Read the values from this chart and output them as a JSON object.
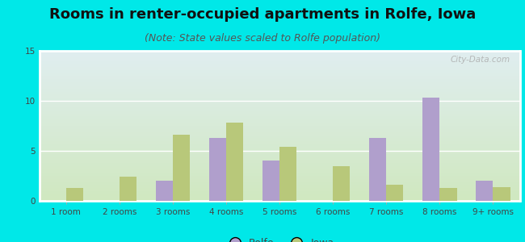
{
  "title": "Rooms in renter-occupied apartments in Rolfe, Iowa",
  "subtitle": "(Note: State values scaled to Rolfe population)",
  "categories": [
    "1 room",
    "2 rooms",
    "3 rooms",
    "4 rooms",
    "5 rooms",
    "6 rooms",
    "7 rooms",
    "8 rooms",
    "9+ rooms"
  ],
  "rolfe_values": [
    0,
    0,
    2.0,
    6.3,
    4.0,
    0,
    6.3,
    10.3,
    2.0
  ],
  "iowa_values": [
    1.3,
    2.4,
    6.6,
    7.8,
    5.4,
    3.5,
    1.6,
    1.3,
    1.4
  ],
  "rolfe_color": "#b09fcc",
  "iowa_color": "#b8c87a",
  "background_outer": "#00e8e8",
  "background_plot_top": "#e0eef0",
  "background_plot_bottom": "#d0e8c0",
  "grid_color": "#ffffff",
  "ylim": [
    0,
    15
  ],
  "yticks": [
    0,
    5,
    10,
    15
  ],
  "bar_width": 0.32,
  "title_fontsize": 13,
  "subtitle_fontsize": 9,
  "tick_fontsize": 7.5,
  "legend_fontsize": 9,
  "watermark": "City-Data.com"
}
